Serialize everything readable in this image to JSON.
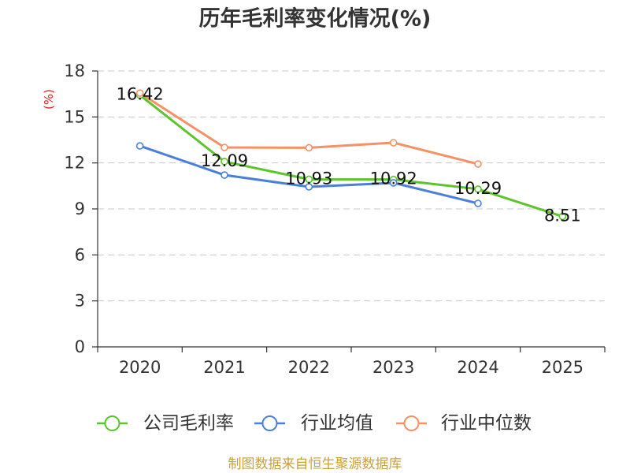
{
  "chart_data": {
    "type": "line",
    "title": "历年毛利率变化情况(%)",
    "xlabel": "",
    "ylabel": "(%)",
    "categories": [
      "2020",
      "2021",
      "2022",
      "2023",
      "2024",
      "2025"
    ],
    "ylim": [
      0,
      18
    ],
    "yticks": [
      0,
      3,
      6,
      9,
      12,
      15,
      18
    ],
    "grid": true,
    "legend_position": "bottom",
    "series": [
      {
        "name": "公司毛利率",
        "color": "#5cc42c",
        "show_labels": true,
        "values": [
          16.42,
          12.09,
          10.93,
          10.92,
          10.29,
          8.51
        ]
      },
      {
        "name": "行业均值",
        "color": "#4b7fd9",
        "show_labels": false,
        "values": [
          13.11,
          11.21,
          10.44,
          10.7,
          9.36,
          null
        ]
      },
      {
        "name": "行业中位数",
        "color": "#f59163",
        "show_labels": false,
        "values": [
          16.56,
          13.01,
          12.99,
          13.32,
          11.93,
          null
        ]
      }
    ]
  },
  "footer": {
    "source": "制图数据来自恒生聚源数据库"
  },
  "colors": {
    "title": "#333333",
    "ylabel": "#e01e1e",
    "axis": "#333333",
    "grid": "#c8c8c8",
    "footer": "#c9a13b"
  }
}
